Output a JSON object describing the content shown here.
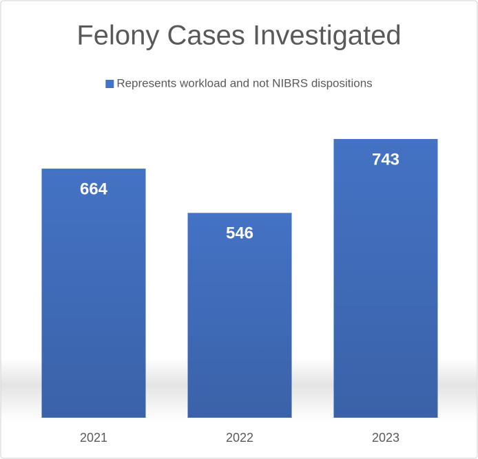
{
  "chart_data": {
    "type": "bar",
    "title": "Felony Cases Investigated",
    "categories": [
      "2021",
      "2022",
      "2023"
    ],
    "series": [
      {
        "name": "Represents workload and not NIBRS dispositions",
        "color": "#4472c4",
        "values": [
          664,
          546,
          743
        ]
      }
    ]
  }
}
